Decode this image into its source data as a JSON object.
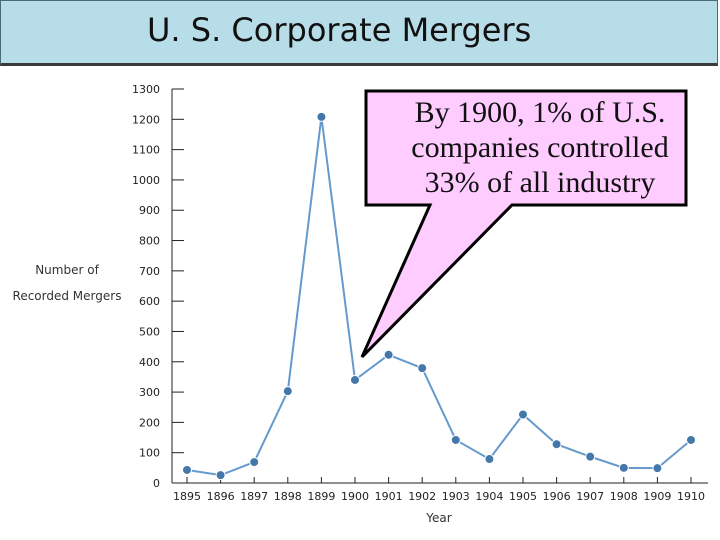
{
  "title": "U. S. Corporate Mergers",
  "colors": {
    "title_bg": "#b7dde8",
    "series": "#6699cc",
    "marker": "#4477aa",
    "callout_bg": "#ffccff"
  },
  "callout": {
    "lines": [
      "By 1900, 1% of U.S.",
      "companies controlled",
      "33% of all industry"
    ]
  },
  "chart_data": {
    "type": "line",
    "title": "",
    "xlabel": "Year",
    "ylabel_lines": [
      "Number of",
      "Recorded Mergers"
    ],
    "ylim": [
      0,
      1300
    ],
    "yticks": [
      0,
      100,
      200,
      300,
      400,
      500,
      600,
      700,
      800,
      900,
      1000,
      1100,
      1200,
      1300
    ],
    "categories": [
      "1895",
      "1896",
      "1897",
      "1898",
      "1899",
      "1900",
      "1901",
      "1902",
      "1903",
      "1904",
      "1905",
      "1906",
      "1907",
      "1908",
      "1909",
      "1910"
    ],
    "series": [
      {
        "values": [
          43,
          26,
          69,
          303,
          1208,
          340,
          423,
          379,
          142,
          79,
          226,
          128,
          87,
          50,
          49,
          142
        ]
      }
    ],
    "grid": false
  }
}
